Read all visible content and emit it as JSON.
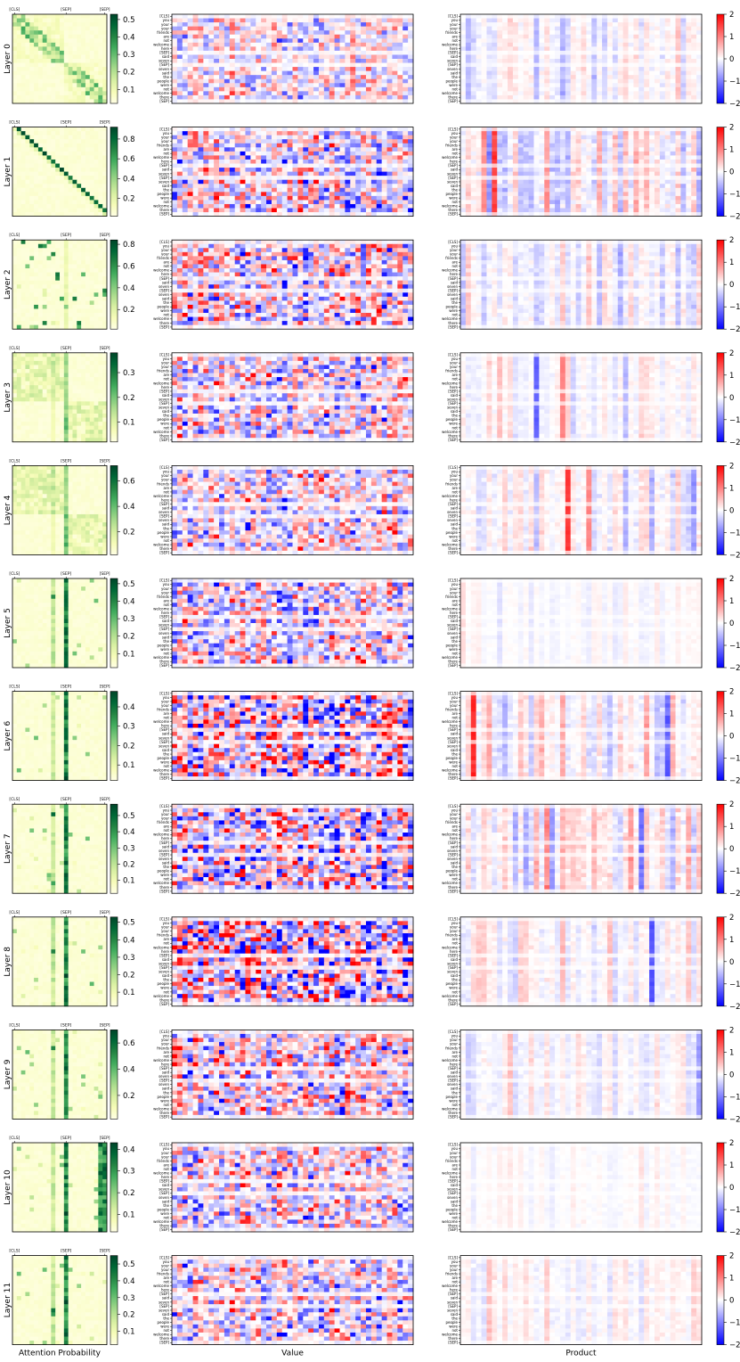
{
  "chart_data": {
    "type": "heatmap",
    "title": "",
    "column_labels": [
      "Attention Probability",
      "Value",
      "Product"
    ],
    "attention_tick_labels": [
      "[CLS]",
      "[SEP]",
      "[SEP]"
    ],
    "tokens": [
      "[CLS]",
      "you",
      "your",
      "your",
      "friends",
      "are",
      "not",
      "welcome",
      "here",
      "[SEP]",
      "said",
      "seven",
      "[SEP]",
      "seven",
      "said",
      "the",
      "people",
      "were",
      "not",
      "welcome",
      "there",
      "[SEP]"
    ],
    "grid": {
      "value_columns": 46,
      "product_columns": 46
    },
    "product_colorbar_ticks": [
      "2",
      "1",
      "0",
      "−1",
      "−2"
    ],
    "product_range": [
      -2,
      2
    ],
    "colormaps": {
      "attention": [
        "#ffffe5",
        "#f7fcb9",
        "#d9f0a3",
        "#addd8e",
        "#78c679",
        "#41ab5d",
        "#238443",
        "#006837",
        "#004529"
      ],
      "diverging": [
        "#0000ff",
        "#ffffff",
        "#ff0000"
      ]
    },
    "layers": [
      {
        "label": "Layer 0",
        "attention_ticks": [
          "0.1",
          "0.2",
          "0.3",
          "0.4",
          "0.5"
        ],
        "attention_max": 0.53,
        "value_intensity": 0.45,
        "product_intensity": 0.35,
        "attention_pattern": "local"
      },
      {
        "label": "Layer 1",
        "attention_ticks": [
          "0.2",
          "0.4",
          "0.6",
          "0.8"
        ],
        "attention_max": 0.92,
        "value_intensity": 0.65,
        "product_intensity": 0.55,
        "attention_pattern": "diagonal"
      },
      {
        "label": "Layer 2",
        "attention_ticks": [
          "0.2",
          "0.4",
          "0.6",
          "0.8"
        ],
        "attention_max": 0.84,
        "value_intensity": 0.7,
        "product_intensity": 0.4,
        "attention_pattern": "sparse"
      },
      {
        "label": "Layer 3",
        "attention_ticks": [
          "0.1",
          "0.2",
          "0.3"
        ],
        "attention_max": 0.38,
        "value_intensity": 0.6,
        "product_intensity": 0.25,
        "attention_pattern": "broad"
      },
      {
        "label": "Layer 4",
        "attention_ticks": [
          "0.2",
          "0.4",
          "0.6"
        ],
        "attention_max": 0.72,
        "value_intensity": 0.55,
        "product_intensity": 0.35,
        "attention_pattern": "broad"
      },
      {
        "label": "Layer 5",
        "attention_ticks": [
          "0.1",
          "0.2",
          "0.3",
          "0.4",
          "0.5"
        ],
        "attention_max": 0.53,
        "value_intensity": 0.65,
        "product_intensity": 0.12,
        "attention_pattern": "sep"
      },
      {
        "label": "Layer 6",
        "attention_ticks": [
          "0.1",
          "0.2",
          "0.3",
          "0.4"
        ],
        "attention_max": 0.48,
        "value_intensity": 0.85,
        "product_intensity": 0.4,
        "attention_pattern": "sep"
      },
      {
        "label": "Layer 7",
        "attention_ticks": [
          "0.1",
          "0.2",
          "0.3",
          "0.4",
          "0.5"
        ],
        "attention_max": 0.57,
        "value_intensity": 0.85,
        "product_intensity": 0.45,
        "attention_pattern": "sep"
      },
      {
        "label": "Layer 8",
        "attention_ticks": [
          "0.1",
          "0.2",
          "0.3",
          "0.4",
          "0.5"
        ],
        "attention_max": 0.53,
        "value_intensity": 0.95,
        "product_intensity": 0.3,
        "attention_pattern": "sep"
      },
      {
        "label": "Layer 9",
        "attention_ticks": [
          "0.2",
          "0.4",
          "0.6"
        ],
        "attention_max": 0.7,
        "value_intensity": 0.7,
        "product_intensity": 0.25,
        "attention_pattern": "sep"
      },
      {
        "label": "Layer 10",
        "attention_ticks": [
          "0.1",
          "0.2",
          "0.3",
          "0.4"
        ],
        "attention_max": 0.43,
        "value_intensity": 0.6,
        "product_intensity": 0.12,
        "attention_pattern": "sep-last"
      },
      {
        "label": "Layer 11",
        "attention_ticks": [
          "0.1",
          "0.2",
          "0.3",
          "0.4",
          "0.5"
        ],
        "attention_max": 0.55,
        "value_intensity": 0.6,
        "product_intensity": 0.25,
        "attention_pattern": "sep"
      }
    ]
  }
}
